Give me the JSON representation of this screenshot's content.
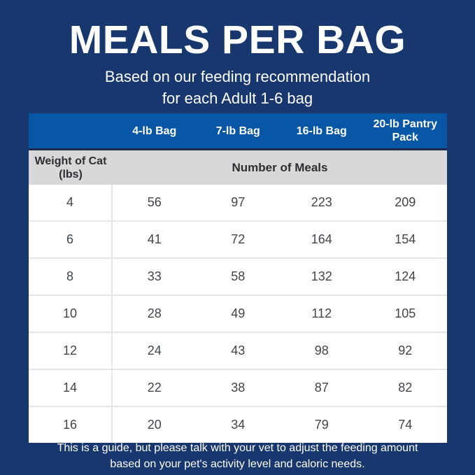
{
  "colors": {
    "navy_background": "#17376e",
    "header_blue": "#0857a6",
    "header_divider_navy": "#1c2b4d",
    "subheader_gray": "#d8d8d8",
    "row_divider_gray": "#e6e6e6",
    "cell_text": "#414449",
    "text_white": "#ffffff"
  },
  "chart_data": {
    "type": "table",
    "title": "MEALS PER BAG",
    "subtitle_line1": "Based on our feeding recommendation",
    "subtitle_line2": "for each Adult 1-6 bag",
    "column_headers": [
      "4-lb Bag",
      "7-lb Bag",
      "16-lb Bag",
      "20-lb Pantry Pack"
    ],
    "row_header_label": "Weight of Cat (lbs)",
    "group_header": "Number of Meals",
    "weights_lbs": [
      4,
      6,
      8,
      10,
      12,
      14,
      16
    ],
    "rows": [
      [
        "4",
        "56",
        "97",
        "223",
        "209"
      ],
      [
        "6",
        "41",
        "72",
        "164",
        "154"
      ],
      [
        "8",
        "33",
        "58",
        "132",
        "124"
      ],
      [
        "10",
        "28",
        "49",
        "112",
        "105"
      ],
      [
        "12",
        "24",
        "43",
        "98",
        "92"
      ],
      [
        "14",
        "22",
        "38",
        "87",
        "82"
      ],
      [
        "16",
        "20",
        "34",
        "79",
        "74"
      ]
    ],
    "note_line1": "This is a guide, but please talk with your vet to adjust the feeding amount",
    "note_line2": "based on your pet's activity level and caloric needs."
  }
}
